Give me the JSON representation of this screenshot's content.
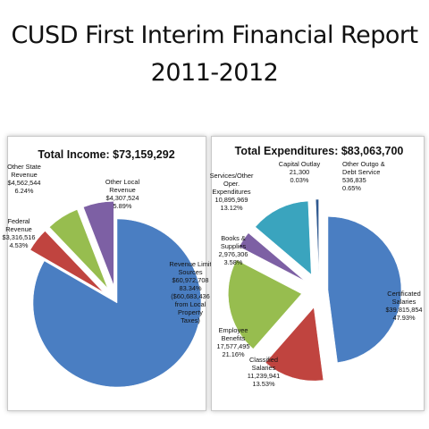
{
  "page": {
    "title_line1": "CUSD First Interim Financial Report",
    "title_line2": "2011-2012"
  },
  "chart_data": [
    {
      "type": "pie",
      "title": "Total Income: $73,159,292",
      "slices": [
        {
          "name": "Revenue Limit Sources",
          "value": 60972708,
          "percent": 83.34,
          "color": "#4a7ec2",
          "label_lines": [
            "Revenue Limit",
            "Sources",
            "$60,972,708",
            "83.34%",
            "($60,683,436",
            "from Local",
            "Property",
            "Taxes)"
          ]
        },
        {
          "name": "Federal Revenue",
          "value": 3316516,
          "percent": 4.53,
          "color": "#c0443f",
          "label_lines": [
            "Federal",
            "Revenue",
            "$3,316,516",
            "4.53%"
          ]
        },
        {
          "name": "Other State Revenue",
          "value": 4562544,
          "percent": 6.24,
          "color": "#97bd4f",
          "label_lines": [
            "Other State",
            "Revenue",
            "$4,562,544",
            "6.24%"
          ]
        },
        {
          "name": "Other Local Revenue",
          "value": 4307524,
          "percent": 5.89,
          "color": "#7d60a4",
          "label_lines": [
            "Other Local",
            "Revenue",
            "$4,307,524",
            "5.89%"
          ]
        }
      ]
    },
    {
      "type": "pie",
      "title": "Total Expenditures:  $83,063,700",
      "slices": [
        {
          "name": "Certificated Salaries",
          "value": 39815854,
          "percent": 47.93,
          "color": "#4a7ec2",
          "label_lines": [
            "Certificated",
            "Salaries",
            "$39,815,854",
            "47.93%"
          ]
        },
        {
          "name": "Classified Salaries",
          "value": 11239941,
          "percent": 13.53,
          "color": "#c0443f",
          "label_lines": [
            "Classified",
            "Salaries",
            "11,239,941",
            "13.53%"
          ]
        },
        {
          "name": "Employee Benefits",
          "value": 17577495,
          "percent": 21.16,
          "color": "#97bd4f",
          "label_lines": [
            "Employee",
            "Benefits",
            "17,577,495",
            "21.16%"
          ]
        },
        {
          "name": "Books & Supplies",
          "value": 2976306,
          "percent": 3.58,
          "color": "#7d60a4",
          "label_lines": [
            "Books &",
            "Supplies",
            "2,976,306",
            "3.58%"
          ]
        },
        {
          "name": "Services/Other Oper. Expenditures",
          "value": 10895969,
          "percent": 13.12,
          "color": "#3aa4be",
          "label_lines": [
            "Services/Other",
            "Oper.",
            "Expenditures",
            "10,895,969",
            "13.12%"
          ]
        },
        {
          "name": "Capital Outlay",
          "value": 21300,
          "percent": 0.03,
          "color": "#f49740",
          "label_lines": [
            "Capital Outlay",
            "21,300",
            "0.03%"
          ]
        },
        {
          "name": "Other Outgo & Debt Service",
          "value": 536835,
          "percent": 0.65,
          "color": "#2f5990",
          "label_lines": [
            "Other Outgo &",
            "Debt Service",
            "536,835",
            "0.65%"
          ]
        }
      ]
    }
  ]
}
